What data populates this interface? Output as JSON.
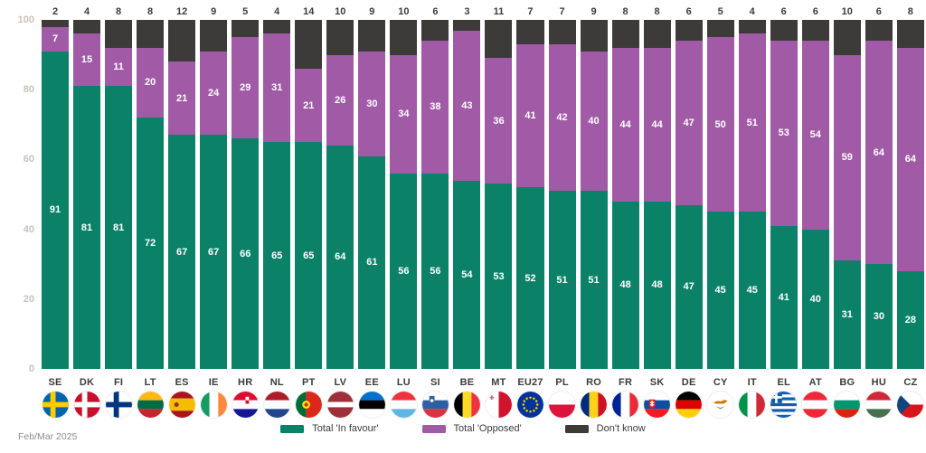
{
  "chart_data": {
    "type": "bar",
    "stacked": true,
    "orientation": "vertical",
    "categories": [
      "SE",
      "DK",
      "FI",
      "LT",
      "ES",
      "IE",
      "HR",
      "NL",
      "PT",
      "LV",
      "EE",
      "LU",
      "SI",
      "BE",
      "MT",
      "EU27",
      "PL",
      "RO",
      "FR",
      "SK",
      "DE",
      "CY",
      "IT",
      "EL",
      "AT",
      "BG",
      "HU",
      "CZ"
    ],
    "flag_icons": [
      "se-flag-icon",
      "dk-flag-icon",
      "fi-flag-icon",
      "lt-flag-icon",
      "es-flag-icon",
      "ie-flag-icon",
      "hr-flag-icon",
      "nl-flag-icon",
      "pt-flag-icon",
      "lv-flag-icon",
      "ee-flag-icon",
      "lu-flag-icon",
      "si-flag-icon",
      "be-flag-icon",
      "mt-flag-icon",
      "eu27-flag-icon",
      "pl-flag-icon",
      "ro-flag-icon",
      "fr-flag-icon",
      "sk-flag-icon",
      "de-flag-icon",
      "cy-flag-icon",
      "it-flag-icon",
      "el-flag-icon",
      "at-flag-icon",
      "bg-flag-icon",
      "hu-flag-icon",
      "cz-flag-icon"
    ],
    "series": [
      {
        "name": "Total 'In favour'",
        "color": "#0b8168",
        "label_position": "inside",
        "values": [
          91,
          81,
          81,
          72,
          67,
          67,
          66,
          65,
          65,
          64,
          61,
          56,
          56,
          54,
          53,
          52,
          51,
          51,
          48,
          48,
          47,
          45,
          45,
          41,
          40,
          31,
          30,
          28
        ]
      },
      {
        "name": "Total 'Opposed'",
        "color": "#a15ba6",
        "label_position": "inside",
        "values": [
          7,
          15,
          11,
          20,
          21,
          24,
          29,
          31,
          21,
          26,
          30,
          34,
          38,
          43,
          36,
          41,
          42,
          40,
          44,
          44,
          47,
          50,
          51,
          53,
          54,
          59,
          64,
          64
        ]
      },
      {
        "name": "Don't know",
        "color": "#3d3a3a",
        "label_position": "above",
        "values": [
          2,
          4,
          8,
          8,
          12,
          9,
          5,
          4,
          14,
          10,
          9,
          10,
          6,
          3,
          11,
          7,
          7,
          9,
          8,
          8,
          6,
          5,
          4,
          6,
          6,
          10,
          6,
          8
        ]
      }
    ],
    "ylim": [
      0,
      100
    ],
    "yticks": [
      100,
      80,
      60,
      40,
      20,
      0
    ],
    "grid": false,
    "legend_position": "bottom",
    "title": "",
    "xlabel": "",
    "ylabel": ""
  },
  "footer": {
    "date_label": "Feb/Mar 2025"
  }
}
